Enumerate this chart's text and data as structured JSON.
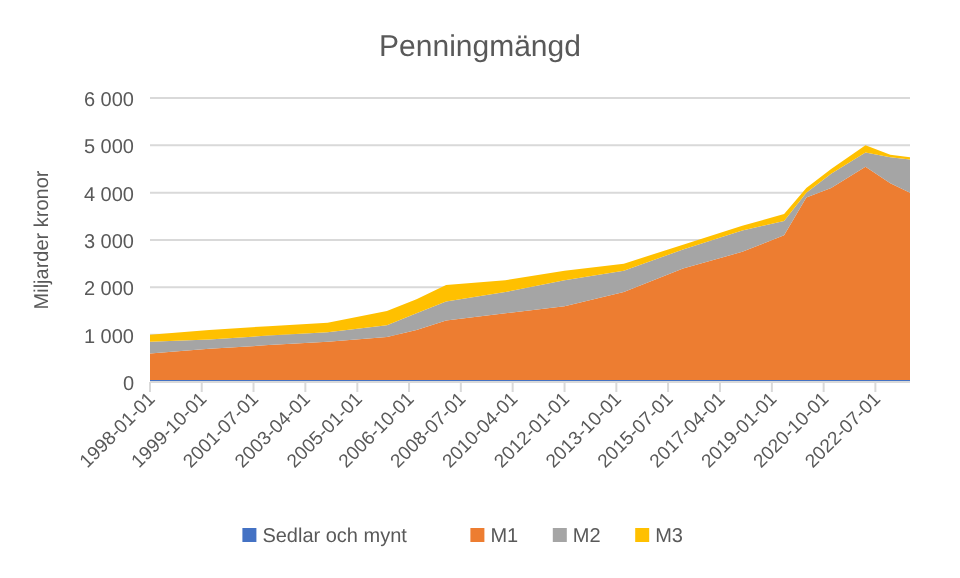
{
  "chart_data": {
    "type": "area",
    "stacked": true,
    "title": "Penningmängd",
    "ylabel": "Miljarder kronor",
    "x": [
      "1998-01",
      "2000-01",
      "2002-01",
      "2004-01",
      "2006-01",
      "2007-01",
      "2008-01",
      "2010-01",
      "2012-01",
      "2014-01",
      "2016-01",
      "2018-01",
      "2019-06",
      "2020-03",
      "2021-01",
      "2022-03",
      "2023-01",
      "2023-09"
    ],
    "series": [
      {
        "name": "Sedlar och mynt",
        "color": "#4472c4",
        "values": [
          40,
          40,
          40,
          40,
          40,
          40,
          40,
          40,
          40,
          40,
          40,
          40,
          40,
          40,
          40,
          40,
          40,
          40
        ]
      },
      {
        "name": "M1",
        "color": "#ed7d31",
        "values": [
          560,
          660,
          740,
          810,
          910,
          1060,
          1260,
          1410,
          1560,
          1860,
          2360,
          2710,
          3060,
          3860,
          4060,
          4510,
          4160,
          3960
        ]
      },
      {
        "name": "M2",
        "color": "#a5a5a5",
        "values": [
          250,
          200,
          200,
          200,
          250,
          350,
          400,
          450,
          550,
          450,
          400,
          450,
          300,
          100,
          300,
          300,
          550,
          700
        ]
      },
      {
        "name": "M3",
        "color": "#ffc000",
        "values": [
          150,
          200,
          200,
          200,
          300,
          300,
          350,
          250,
          200,
          150,
          100,
          100,
          150,
          100,
          100,
          150,
          50,
          50
        ]
      }
    ],
    "xlim": [
      "1998-01",
      "2023-09"
    ],
    "xticks": [
      "1998-01-01",
      "1999-10-01",
      "2001-07-01",
      "2003-04-01",
      "2005-01-01",
      "2006-10-01",
      "2008-07-01",
      "2010-04-01",
      "2012-01-01",
      "2013-10-01",
      "2015-07-01",
      "2017-04-01",
      "2019-01-01",
      "2020-10-01",
      "2022-07-01"
    ],
    "ylim": [
      0,
      6000
    ],
    "yticks": [
      0,
      {
        "value": 1000,
        "label": "1 000"
      },
      {
        "value": 2000,
        "label": "2 000"
      },
      {
        "value": 3000,
        "label": "3 000"
      },
      {
        "value": 4000,
        "label": "4 000"
      },
      {
        "value": 5000,
        "label": "5 000"
      },
      {
        "value": 6000,
        "label": "6 000"
      }
    ],
    "grid": "y",
    "legend": "bottom"
  }
}
